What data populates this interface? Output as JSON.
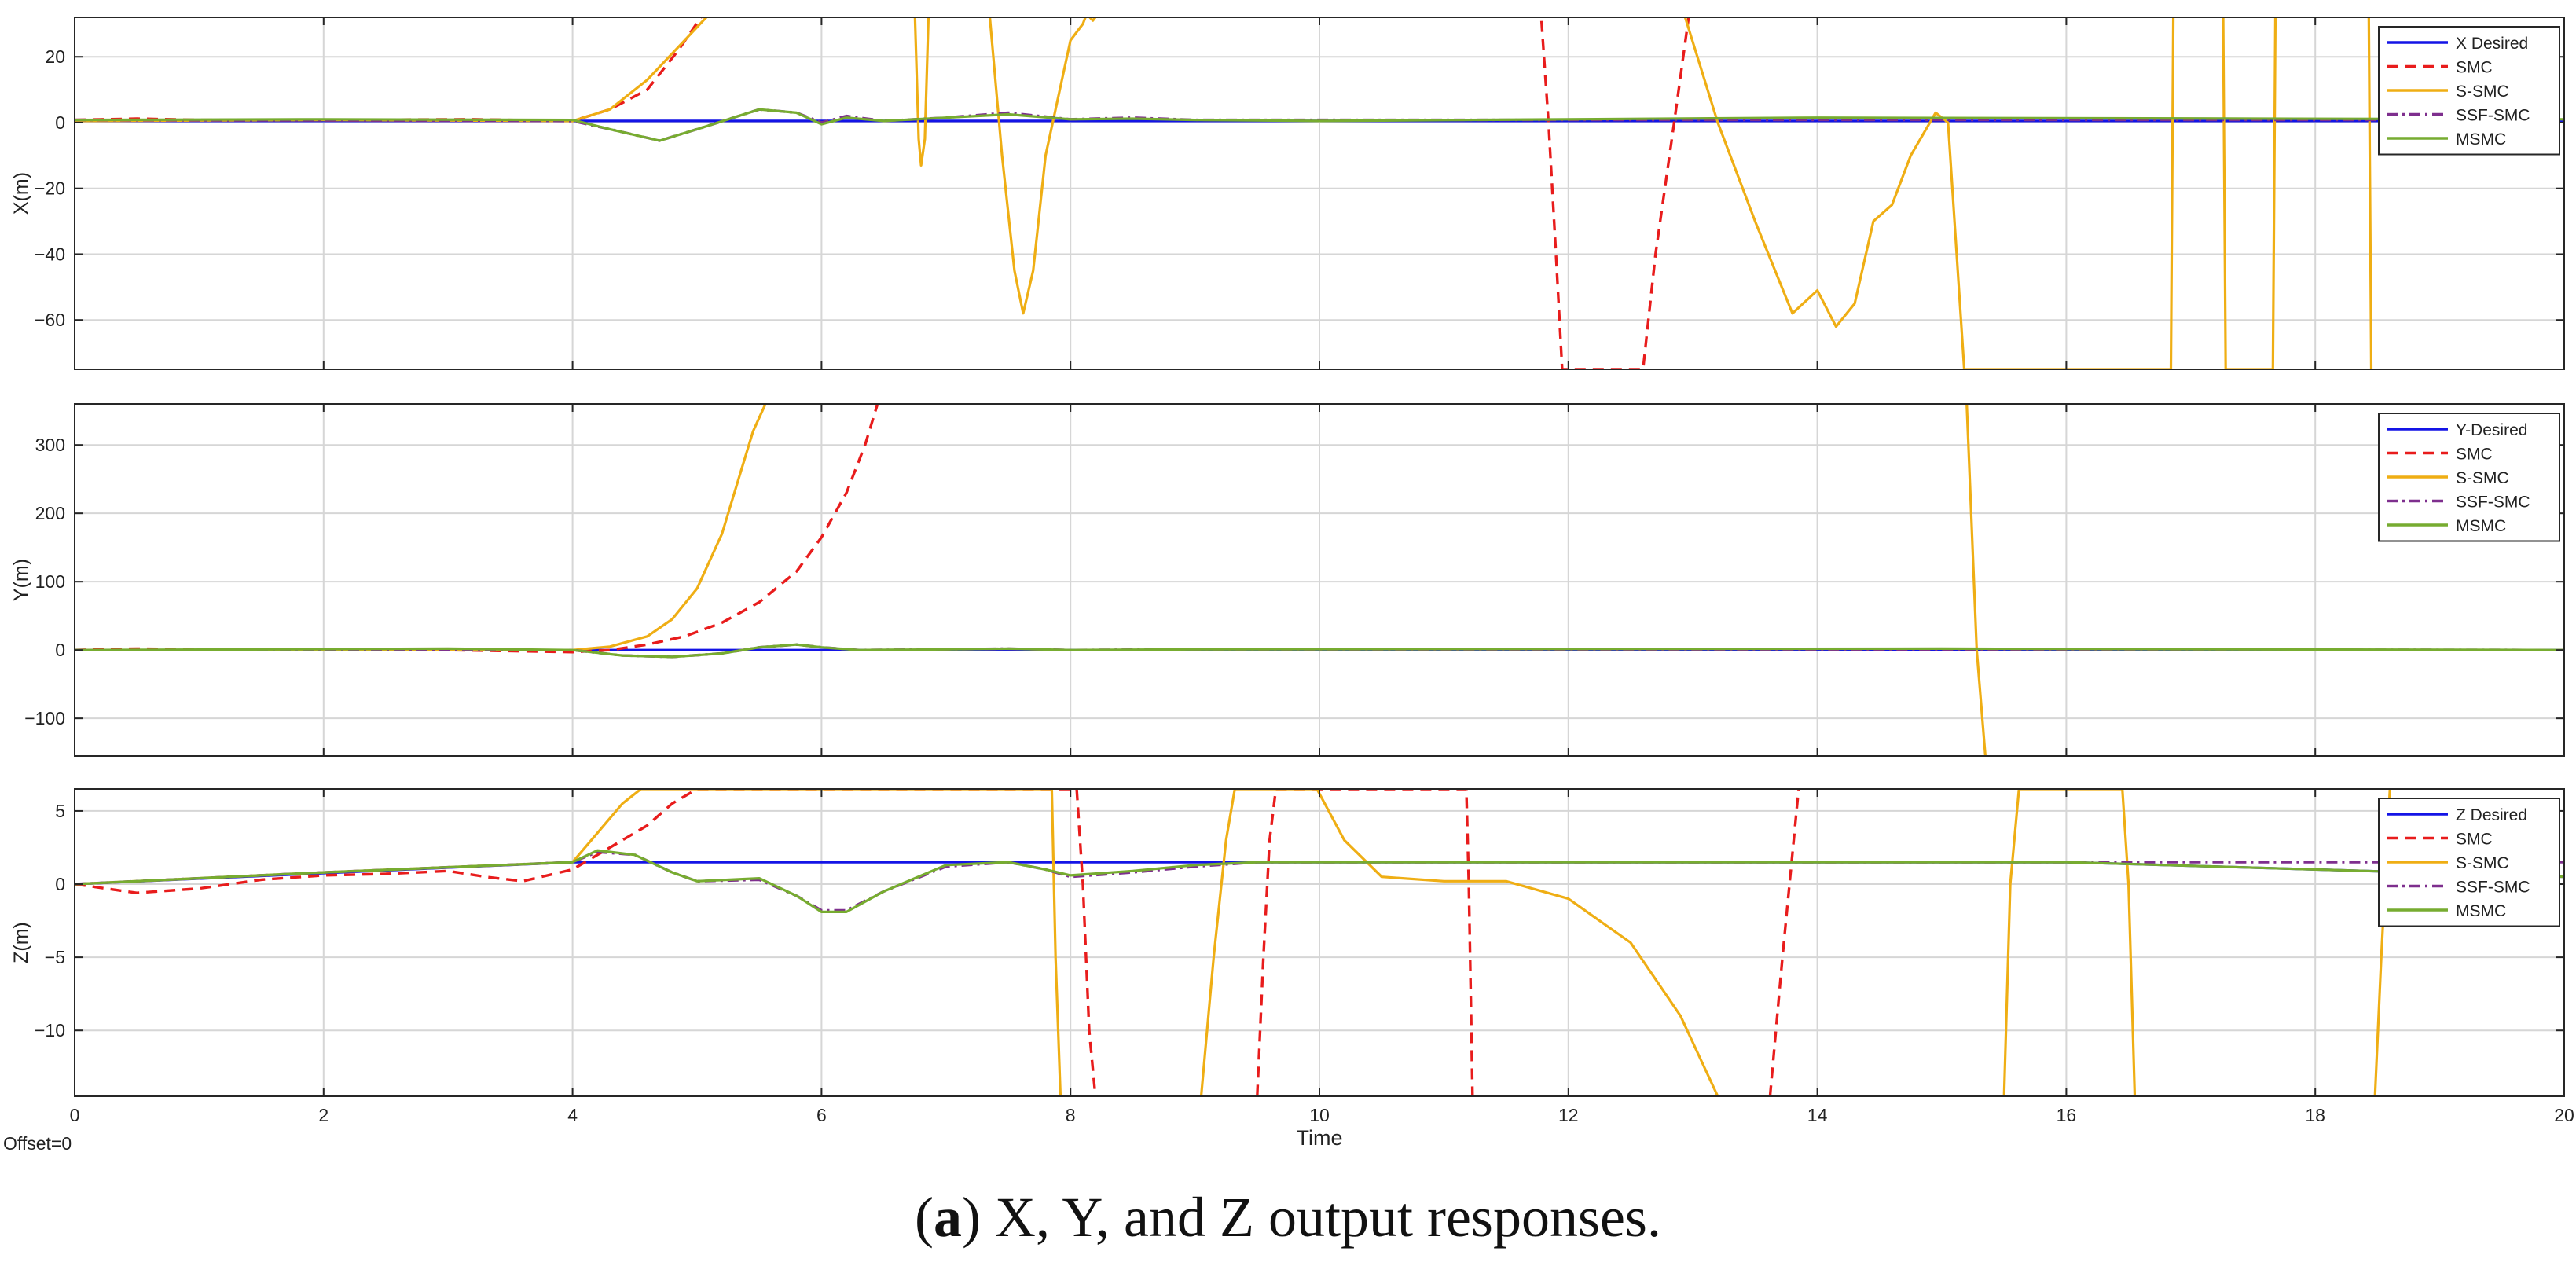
{
  "caption": {
    "label": "a",
    "text": ") X, Y, and Z output responses."
  },
  "offset_label": "Offset=0",
  "colors": {
    "desired": "#1414e6",
    "smc": "#e81c1c",
    "ssmc": "#efae14",
    "ssfsmc": "#7e2f8e",
    "msmc": "#77ac30"
  },
  "chart_data": [
    {
      "type": "line",
      "ylabel": "X(m)",
      "xlabel": "",
      "xlim": [
        0,
        20
      ],
      "ylim": [
        -75,
        32
      ],
      "xticks": [
        "0",
        "2",
        "4",
        "6",
        "8",
        "10",
        "12",
        "14",
        "16",
        "18",
        "20"
      ],
      "yticks": [
        20,
        0,
        -20,
        -40,
        -60
      ],
      "grid": true,
      "legend": "top-right",
      "series": [
        {
          "name": "X Desired",
          "style": "solid",
          "color": "#1414e6",
          "x": [
            0,
            4,
            9,
            20
          ],
          "y": [
            0.5,
            0.5,
            0.5,
            0.5
          ]
        },
        {
          "name": "SMC",
          "style": "dashed",
          "color": "#e81c1c",
          "x": [
            0,
            0.5,
            1,
            2,
            3.2,
            4,
            4.3,
            4.6,
            4.85,
            5.05,
            11.78,
            11.84,
            11.9,
            11.95,
            12.6,
            12.7,
            12.85,
            12.97
          ],
          "y": [
            0.8,
            1.2,
            0.8,
            0.8,
            1.0,
            0.5,
            4,
            10,
            22,
            33,
            33,
            0,
            -40,
            -75,
            -75,
            -40,
            0,
            33
          ]
        },
        {
          "name": "S-SMC",
          "style": "solid",
          "color": "#efae14",
          "x": [
            0,
            2,
            4,
            4.3,
            4.6,
            4.9,
            5.1,
            6.75,
            6.78,
            6.8,
            6.83,
            6.86,
            7.35,
            7.45,
            7.55,
            7.62,
            7.7,
            7.8,
            8.0,
            8.1,
            8.13,
            8.18,
            8.22,
            12.93,
            13.2,
            13.5,
            13.8,
            14.0,
            14.15,
            14.3,
            14.45,
            14.6,
            14.75,
            14.95,
            15.05,
            15.18,
            16.84,
            16.86,
            17.26,
            17.28,
            17.66,
            17.68,
            18.43,
            18.45
          ],
          "y": [
            0.5,
            0.8,
            0.5,
            4,
            13,
            25,
            33,
            33,
            -5,
            -13,
            -5,
            33,
            33,
            -10,
            -45,
            -58,
            -45,
            -10,
            25,
            30,
            33,
            31,
            33,
            33,
            0,
            -30,
            -58,
            -51,
            -62,
            -55,
            -30,
            -25,
            -10,
            3,
            0,
            -75,
            -75,
            33,
            33,
            -75,
            -75,
            33,
            33,
            -75
          ]
        },
        {
          "name": "SSF-SMC",
          "style": "dashdot",
          "color": "#7e2f8e",
          "x": [
            0,
            4,
            4.3,
            4.7,
            5.0,
            5.5,
            5.8,
            6.0,
            6.2,
            6.5,
            7.0,
            7.5,
            8.0,
            8.5,
            9.0,
            20
          ],
          "y": [
            0.8,
            0.5,
            -2,
            -5.5,
            -2,
            4,
            3,
            0,
            2,
            0.5,
            1.5,
            3,
            1,
            1.5,
            0.8,
            0.8
          ]
        },
        {
          "name": "MSMC",
          "style": "solid",
          "color": "#77ac30",
          "x": [
            0,
            2,
            4,
            4.3,
            4.7,
            5.0,
            5.5,
            5.8,
            6.0,
            6.2,
            6.5,
            7.0,
            7.5,
            8.0,
            8.5,
            9.0,
            10,
            14,
            20
          ],
          "y": [
            0.8,
            1.0,
            0.8,
            -2,
            -5.5,
            -2,
            4,
            3,
            -0.5,
            1.5,
            0.5,
            1.5,
            2.5,
            1,
            1.2,
            0.8,
            0.5,
            1.5,
            1
          ]
        }
      ]
    },
    {
      "type": "line",
      "ylabel": "Y(m)",
      "xlabel": "",
      "xlim": [
        0,
        20
      ],
      "ylim": [
        -155,
        360
      ],
      "xticks": [
        "0",
        "2",
        "4",
        "6",
        "8",
        "10",
        "12",
        "14",
        "16",
        "18",
        "20"
      ],
      "yticks": [
        300,
        200,
        100,
        0,
        -100
      ],
      "grid": true,
      "legend": "top-right",
      "series": [
        {
          "name": "Y-Desired",
          "style": "solid",
          "color": "#1414e6",
          "x": [
            0,
            4,
            9,
            20
          ],
          "y": [
            0,
            0,
            0,
            0
          ]
        },
        {
          "name": "SMC",
          "style": "dashed",
          "color": "#e81c1c",
          "x": [
            0,
            0.5,
            1,
            2,
            3,
            4,
            4.3,
            4.6,
            4.9,
            5.2,
            5.5,
            5.8,
            6.0,
            6.2,
            6.35,
            6.45
          ],
          "y": [
            0,
            2,
            1,
            1,
            0,
            -3,
            0,
            8,
            20,
            40,
            70,
            115,
            165,
            230,
            300,
            360
          ]
        },
        {
          "name": "S-SMC",
          "style": "solid",
          "color": "#efae14",
          "x": [
            0,
            4,
            4.3,
            4.6,
            4.8,
            5.0,
            5.2,
            5.35,
            5.45,
            5.55,
            15.2,
            15.28,
            15.35
          ],
          "y": [
            0,
            0,
            5,
            20,
            45,
            90,
            170,
            260,
            320,
            360,
            360,
            0,
            -155
          ]
        },
        {
          "name": "SSF-SMC",
          "style": "dashdot",
          "color": "#7e2f8e",
          "x": [
            0,
            4,
            4.4,
            4.8,
            5.2,
            5.5,
            5.8,
            6.0,
            6.3,
            7.0,
            7.5,
            8.0,
            9.0,
            15.0,
            20
          ],
          "y": [
            0,
            0,
            -8,
            -10,
            -5,
            4,
            8,
            4,
            0,
            1,
            2,
            0,
            1,
            1,
            0
          ]
        },
        {
          "name": "MSMC",
          "style": "solid",
          "color": "#77ac30",
          "x": [
            0,
            3,
            4,
            4.4,
            4.8,
            5.2,
            5.5,
            5.8,
            6.0,
            6.3,
            7.0,
            7.5,
            8.0,
            9.0,
            15.0,
            20
          ],
          "y": [
            0,
            2,
            0,
            -8,
            -10,
            -5,
            4,
            8,
            4,
            0,
            1,
            2,
            0,
            1,
            2,
            0
          ]
        }
      ]
    },
    {
      "type": "line",
      "ylabel": "Z(m)",
      "xlabel": "Time",
      "xlim": [
        0,
        20
      ],
      "ylim": [
        -14.5,
        6.5
      ],
      "xticks": [
        "0",
        "2",
        "4",
        "6",
        "8",
        "10",
        "12",
        "14",
        "16",
        "18",
        "20"
      ],
      "yticks": [
        5,
        0,
        -5,
        -10
      ],
      "grid": true,
      "legend": "top-right",
      "series": [
        {
          "name": "Z Desired",
          "style": "solid",
          "color": "#1414e6",
          "x": [
            0,
            4,
            4.05,
            9.5,
            16,
            20
          ],
          "y": [
            0,
            1.5,
            1.5,
            1.5,
            1.5,
            0.5
          ]
        },
        {
          "name": "SMC",
          "style": "dashed",
          "color": "#e81c1c",
          "x": [
            0,
            0.5,
            1,
            1.5,
            2,
            2.5,
            3,
            3.3,
            3.6,
            4.0,
            4.3,
            4.6,
            4.8,
            5.0,
            5.2,
            8.05,
            8.1,
            8.15,
            8.2,
            9.5,
            9.55,
            9.6,
            9.65,
            11.18,
            11.2,
            11.23,
            13.62,
            13.72,
            13.85
          ],
          "y": [
            0,
            -0.6,
            -0.3,
            0.3,
            0.6,
            0.7,
            0.9,
            0.5,
            0.2,
            1.0,
            2.5,
            4,
            5.5,
            6.5,
            6.5,
            6.5,
            0,
            -10,
            -14.5,
            -14.5,
            -5,
            3,
            6.5,
            6.5,
            0,
            -14.5,
            -14.5,
            -5,
            6.5
          ]
        },
        {
          "name": "S-SMC",
          "style": "solid",
          "color": "#efae14",
          "x": [
            0,
            2,
            4,
            4.2,
            4.4,
            4.55,
            7.85,
            7.88,
            7.92,
            9.05,
            9.15,
            9.25,
            9.32,
            9.98,
            10.2,
            10.5,
            11.0,
            11.5,
            12.0,
            12.5,
            12.9,
            13.2,
            15.5,
            15.55,
            15.62,
            16.45,
            16.5,
            16.55,
            18.48,
            18.53,
            18.6
          ],
          "y": [
            0,
            0.8,
            1.5,
            3.5,
            5.5,
            6.5,
            6.5,
            -5,
            -14.5,
            -14.5,
            -5,
            3,
            6.5,
            6.5,
            3,
            0.5,
            0.2,
            0.2,
            -1,
            -4,
            -9,
            -14.5,
            -14.5,
            0,
            6.5,
            6.5,
            0,
            -14.5,
            -14.5,
            -5,
            6.5
          ]
        },
        {
          "name": "SSF-SMC",
          "style": "dashdot",
          "color": "#7e2f8e",
          "x": [
            0,
            2,
            4,
            4.2,
            4.5,
            4.8,
            5.0,
            5.5,
            5.8,
            6.0,
            6.2,
            6.5,
            7.0,
            7.5,
            7.8,
            8.0,
            8.5,
            9.0,
            9.5,
            20
          ],
          "y": [
            0,
            0.8,
            1.5,
            2.2,
            2.0,
            0.8,
            0.2,
            0.3,
            -0.8,
            -1.8,
            -1.8,
            -0.5,
            1.2,
            1.5,
            1.0,
            0.5,
            0.8,
            1.2,
            1.5,
            1.5
          ]
        },
        {
          "name": "MSMC",
          "style": "solid",
          "color": "#77ac30",
          "x": [
            0,
            2,
            4,
            4.2,
            4.5,
            4.8,
            5.0,
            5.5,
            5.8,
            6.0,
            6.2,
            6.5,
            7.0,
            7.5,
            7.8,
            8.0,
            8.5,
            9.0,
            9.5,
            16,
            20
          ],
          "y": [
            0,
            0.8,
            1.5,
            2.3,
            2.0,
            0.8,
            0.2,
            0.4,
            -0.8,
            -1.9,
            -1.9,
            -0.5,
            1.3,
            1.5,
            1.0,
            0.6,
            0.9,
            1.3,
            1.5,
            1.5,
            0.5
          ]
        }
      ]
    }
  ]
}
